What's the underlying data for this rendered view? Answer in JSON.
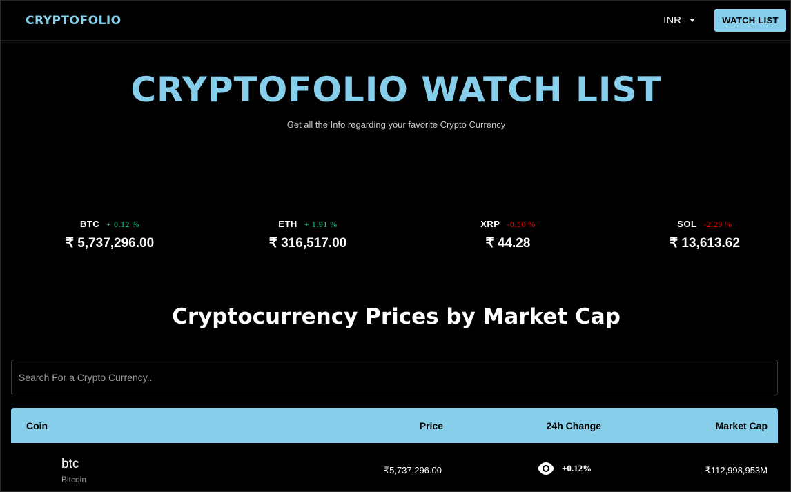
{
  "header": {
    "brand": "CRYPTOFOLIO",
    "currency": "INR",
    "watchlist_label": "WATCH LIST"
  },
  "hero": {
    "title": "CRYPTOFOLIO WATCH LIST",
    "subtitle": "Get all the Info regarding your favorite Crypto Currency"
  },
  "ticker": [
    {
      "symbol": "BTC",
      "change": "+ 0.12 %",
      "direction": "up",
      "price": "₹ 5,737,296.00"
    },
    {
      "symbol": "ETH",
      "change": "+ 1.91 %",
      "direction": "up",
      "price": "₹ 316,517.00"
    },
    {
      "symbol": "XRP",
      "change": "-0.50 %",
      "direction": "down",
      "price": "₹ 44.28"
    },
    {
      "symbol": "SOL",
      "change": "-2.29 %",
      "direction": "down",
      "price": "₹ 13,613.62"
    }
  ],
  "section_title": "Cryptocurrency Prices by Market Cap",
  "search": {
    "placeholder": "Search For a Crypto Currency..",
    "value": ""
  },
  "table": {
    "columns": [
      "Coin",
      "Price",
      "24h Change",
      "Market Cap"
    ],
    "rows": [
      {
        "symbol": "btc",
        "name": "Bitcoin",
        "price": "₹5,737,296.00",
        "change": "+0.12%",
        "market_cap": "₹112,998,953M"
      }
    ]
  },
  "colors": {
    "accent": "#87ceeb",
    "background": "#000000",
    "positive": "#0ecb81",
    "negative": "#ff0000"
  },
  "icons": {
    "currency_caret": "chevron-down-icon",
    "watch": "eye-icon"
  }
}
